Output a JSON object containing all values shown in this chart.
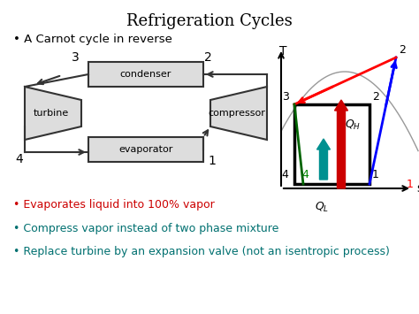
{
  "title": "Refrigeration Cycles",
  "bullet1": "• A Carnot cycle in reverse",
  "bullet2_color": "#cc0000",
  "bullet2": "• Evaporates liquid into 100% vapor",
  "bullet3_color": "#007070",
  "bullet3": "• Compress vapor instead of two phase mixture",
  "bullet4_color": "#007070",
  "bullet4": "• Replace turbine by an expansion valve (not an isentropic process)",
  "bg_color": "#ffffff",
  "T_label": "T",
  "s_label": "s"
}
